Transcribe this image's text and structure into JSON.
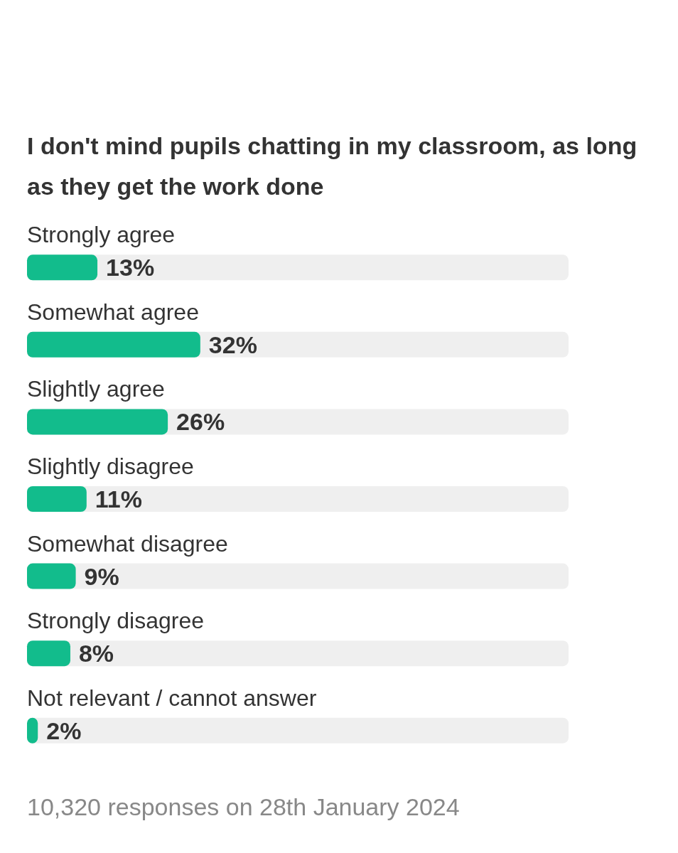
{
  "chart_data": {
    "type": "bar",
    "orientation": "horizontal",
    "title": "I don't mind pupils chatting in my classroom, as long as they get the work done",
    "categories": [
      "Strongly agree",
      "Somewhat agree",
      "Slightly agree",
      "Slightly disagree",
      "Somewhat disagree",
      "Strongly disagree",
      "Not relevant / cannot answer"
    ],
    "values": [
      13,
      32,
      26,
      11,
      9,
      8,
      2
    ],
    "color": "#12bc8c",
    "xlim": [
      0,
      100
    ],
    "value_labels": [
      "13%",
      "32%",
      "26%",
      "11%",
      "9%",
      "8%",
      "2%"
    ],
    "annotations": [
      "10,320 responses on 28th January 2024"
    ]
  }
}
